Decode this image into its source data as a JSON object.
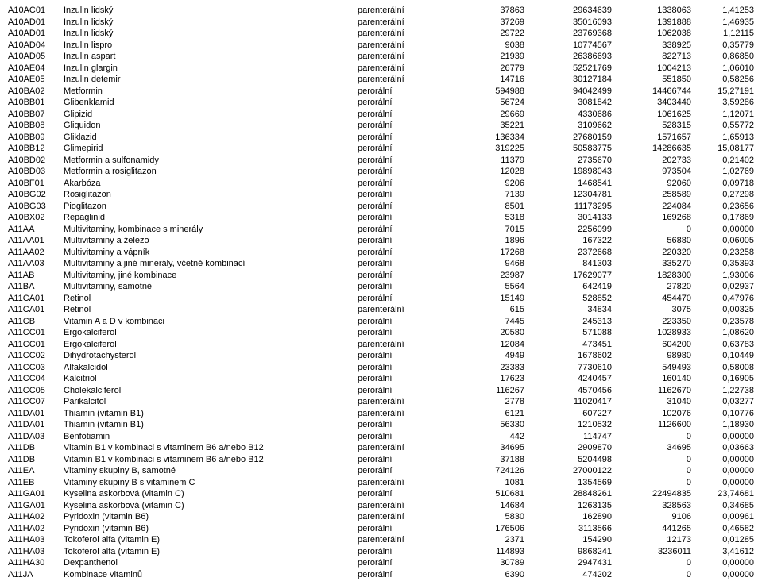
{
  "rows": [
    {
      "code": "A10AC01",
      "name": "Inzulin lidský",
      "route": "parenterální",
      "v1": "37863",
      "v2": "29634639",
      "v3": "1338063",
      "v4": "1,41253"
    },
    {
      "code": "A10AD01",
      "name": "Inzulin lidský",
      "route": "parenterální",
      "v1": "37269",
      "v2": "35016093",
      "v3": "1391888",
      "v4": "1,46935"
    },
    {
      "code": "A10AD01",
      "name": "Inzulin lidský",
      "route": "parenterální",
      "v1": "29722",
      "v2": "23769368",
      "v3": "1062038",
      "v4": "1,12115"
    },
    {
      "code": "A10AD04",
      "name": "Inzulin lispro",
      "route": "parenterální",
      "v1": "9038",
      "v2": "10774567",
      "v3": "338925",
      "v4": "0,35779"
    },
    {
      "code": "A10AD05",
      "name": "Inzulin aspart",
      "route": "parenterální",
      "v1": "21939",
      "v2": "26386693",
      "v3": "822713",
      "v4": "0,86850"
    },
    {
      "code": "A10AE04",
      "name": "Inzulin glargin",
      "route": "parenterální",
      "v1": "26779",
      "v2": "52521769",
      "v3": "1004213",
      "v4": "1,06010"
    },
    {
      "code": "A10AE05",
      "name": "Inzulin detemir",
      "route": "parenterální",
      "v1": "14716",
      "v2": "30127184",
      "v3": "551850",
      "v4": "0,58256"
    },
    {
      "code": "A10BA02",
      "name": "Metformin",
      "route": "perorální",
      "v1": "594988",
      "v2": "94042499",
      "v3": "14466744",
      "v4": "15,27191"
    },
    {
      "code": "A10BB01",
      "name": "Glibenklamid",
      "route": "perorální",
      "v1": "56724",
      "v2": "3081842",
      "v3": "3403440",
      "v4": "3,59286"
    },
    {
      "code": "A10BB07",
      "name": "Glipizid",
      "route": "perorální",
      "v1": "29669",
      "v2": "4330686",
      "v3": "1061625",
      "v4": "1,12071"
    },
    {
      "code": "A10BB08",
      "name": "Gliquidon",
      "route": "perorální",
      "v1": "35221",
      "v2": "3109662",
      "v3": "528315",
      "v4": "0,55772"
    },
    {
      "code": "A10BB09",
      "name": "Gliklazid",
      "route": "perorální",
      "v1": "136334",
      "v2": "27680159",
      "v3": "1571657",
      "v4": "1,65913"
    },
    {
      "code": "A10BB12",
      "name": "Glimepirid",
      "route": "perorální",
      "v1": "319225",
      "v2": "50583775",
      "v3": "14286635",
      "v4": "15,08177"
    },
    {
      "code": "A10BD02",
      "name": "Metformin a sulfonamidy",
      "route": "perorální",
      "v1": "11379",
      "v2": "2735670",
      "v3": "202733",
      "v4": "0,21402"
    },
    {
      "code": "A10BD03",
      "name": "Metformin a rosiglitazon",
      "route": "perorální",
      "v1": "12028",
      "v2": "19898043",
      "v3": "973504",
      "v4": "1,02769"
    },
    {
      "code": "A10BF01",
      "name": "Akarbóza",
      "route": "perorální",
      "v1": "9206",
      "v2": "1468541",
      "v3": "92060",
      "v4": "0,09718"
    },
    {
      "code": "A10BG02",
      "name": "Rosiglitazon",
      "route": "perorální",
      "v1": "7139",
      "v2": "12304781",
      "v3": "258589",
      "v4": "0,27298"
    },
    {
      "code": "A10BG03",
      "name": "Pioglitazon",
      "route": "perorální",
      "v1": "8501",
      "v2": "11173295",
      "v3": "224084",
      "v4": "0,23656"
    },
    {
      "code": "A10BX02",
      "name": "Repaglinid",
      "route": "perorální",
      "v1": "5318",
      "v2": "3014133",
      "v3": "169268",
      "v4": "0,17869"
    },
    {
      "code": "A11AA",
      "name": "Multivitaminy, kombinace s minerály",
      "route": "perorální",
      "v1": "7015",
      "v2": "2256099",
      "v3": "0",
      "v4": "0,00000"
    },
    {
      "code": "A11AA01",
      "name": "Multivitaminy a železo",
      "route": "perorální",
      "v1": "1896",
      "v2": "167322",
      "v3": "56880",
      "v4": "0,06005"
    },
    {
      "code": "A11AA02",
      "name": "Multivitaminy a vápník",
      "route": "perorální",
      "v1": "17268",
      "v2": "2372668",
      "v3": "220320",
      "v4": "0,23258"
    },
    {
      "code": "A11AA03",
      "name": "Multivitaminy a jiné minerály, včetně kombinací",
      "route": "perorální",
      "v1": "9468",
      "v2": "841303",
      "v3": "335270",
      "v4": "0,35393"
    },
    {
      "code": "A11AB",
      "name": "Multivitaminy, jiné kombinace",
      "route": "perorální",
      "v1": "23987",
      "v2": "17629077",
      "v3": "1828300",
      "v4": "1,93006"
    },
    {
      "code": "A11BA",
      "name": "Multivitaminy, samotné",
      "route": "perorální",
      "v1": "5564",
      "v2": "642419",
      "v3": "27820",
      "v4": "0,02937"
    },
    {
      "code": "A11CA01",
      "name": "Retinol",
      "route": "perorální",
      "v1": "15149",
      "v2": "528852",
      "v3": "454470",
      "v4": "0,47976"
    },
    {
      "code": "A11CA01",
      "name": "Retinol",
      "route": "parenterální",
      "v1": "615",
      "v2": "34834",
      "v3": "3075",
      "v4": "0,00325"
    },
    {
      "code": "A11CB",
      "name": "Vitamin A a D v kombinaci",
      "route": "perorální",
      "v1": "7445",
      "v2": "245313",
      "v3": "223350",
      "v4": "0,23578"
    },
    {
      "code": "A11CC01",
      "name": "Ergokalciferol",
      "route": "perorální",
      "v1": "20580",
      "v2": "571088",
      "v3": "1028933",
      "v4": "1,08620"
    },
    {
      "code": "A11CC01",
      "name": "Ergokalciferol",
      "route": "parenterální",
      "v1": "12084",
      "v2": "473451",
      "v3": "604200",
      "v4": "0,63783"
    },
    {
      "code": "A11CC02",
      "name": "Dihydrotachysterol",
      "route": "perorální",
      "v1": "4949",
      "v2": "1678602",
      "v3": "98980",
      "v4": "0,10449"
    },
    {
      "code": "A11CC03",
      "name": "Alfakalcidol",
      "route": "perorální",
      "v1": "23383",
      "v2": "7730610",
      "v3": "549493",
      "v4": "0,58008"
    },
    {
      "code": "A11CC04",
      "name": "Kalcitriol",
      "route": "perorální",
      "v1": "17623",
      "v2": "4240457",
      "v3": "160140",
      "v4": "0,16905"
    },
    {
      "code": "A11CC05",
      "name": "Cholekalciferol",
      "route": "perorální",
      "v1": "116267",
      "v2": "4570456",
      "v3": "1162670",
      "v4": "1,22738"
    },
    {
      "code": "A11CC07",
      "name": "Parikalcitol",
      "route": "parenterální",
      "v1": "2778",
      "v2": "11020417",
      "v3": "31040",
      "v4": "0,03277"
    },
    {
      "code": "A11DA01",
      "name": "Thiamin (vitamin B1)",
      "route": "parenterální",
      "v1": "6121",
      "v2": "607227",
      "v3": "102076",
      "v4": "0,10776"
    },
    {
      "code": "A11DA01",
      "name": "Thiamin (vitamin B1)",
      "route": "perorální",
      "v1": "56330",
      "v2": "1210532",
      "v3": "1126600",
      "v4": "1,18930"
    },
    {
      "code": "A11DA03",
      "name": "Benfotiamin",
      "route": "perorální",
      "v1": "442",
      "v2": "114747",
      "v3": "0",
      "v4": "0,00000"
    },
    {
      "code": "A11DB",
      "name": "Vitamin B1 v kombinaci s vitaminem B6 a/nebo B12",
      "route": "parenterální",
      "v1": "34695",
      "v2": "2909870",
      "v3": "34695",
      "v4": "0,03663"
    },
    {
      "code": "A11DB",
      "name": "Vitamin B1 v kombinaci s vitaminem B6 a/nebo B12",
      "route": "perorální",
      "v1": "37188",
      "v2": "5204498",
      "v3": "0",
      "v4": "0,00000"
    },
    {
      "code": "A11EA",
      "name": "Vitaminy skupiny B, samotné",
      "route": "perorální",
      "v1": "724126",
      "v2": "27000122",
      "v3": "0",
      "v4": "0,00000"
    },
    {
      "code": "A11EB",
      "name": "Vitaminy skupiny B s vitaminem C",
      "route": "parenterální",
      "v1": "1081",
      "v2": "1354569",
      "v3": "0",
      "v4": "0,00000"
    },
    {
      "code": "A11GA01",
      "name": "Kyselina askorbová (vitamin C)",
      "route": "perorální",
      "v1": "510681",
      "v2": "28848261",
      "v3": "22494835",
      "v4": "23,74681"
    },
    {
      "code": "A11GA01",
      "name": "Kyselina askorbová (vitamin C)",
      "route": "parenterální",
      "v1": "14684",
      "v2": "1263135",
      "v3": "328563",
      "v4": "0,34685"
    },
    {
      "code": "A11HA02",
      "name": "Pyridoxin (vitamin B6)",
      "route": "parenterální",
      "v1": "5830",
      "v2": "162890",
      "v3": "9106",
      "v4": "0,00961"
    },
    {
      "code": "A11HA02",
      "name": "Pyridoxin (vitamin B6)",
      "route": "perorální",
      "v1": "176506",
      "v2": "3113566",
      "v3": "441265",
      "v4": "0,46582"
    },
    {
      "code": "A11HA03",
      "name": "Tokoferol alfa (vitamin E)",
      "route": "parenterální",
      "v1": "2371",
      "v2": "154290",
      "v3": "12173",
      "v4": "0,01285"
    },
    {
      "code": "A11HA03",
      "name": "Tokoferol alfa (vitamin E)",
      "route": "perorální",
      "v1": "114893",
      "v2": "9868241",
      "v3": "3236011",
      "v4": "3,41612"
    },
    {
      "code": "A11HA30",
      "name": "Dexpanthenol",
      "route": "perorální",
      "v1": "30789",
      "v2": "2947431",
      "v3": "0",
      "v4": "0,00000"
    },
    {
      "code": "A11JA",
      "name": "Kombinace vitaminů",
      "route": "perorální",
      "v1": "6390",
      "v2": "474202",
      "v3": "0",
      "v4": "0,00000"
    }
  ]
}
